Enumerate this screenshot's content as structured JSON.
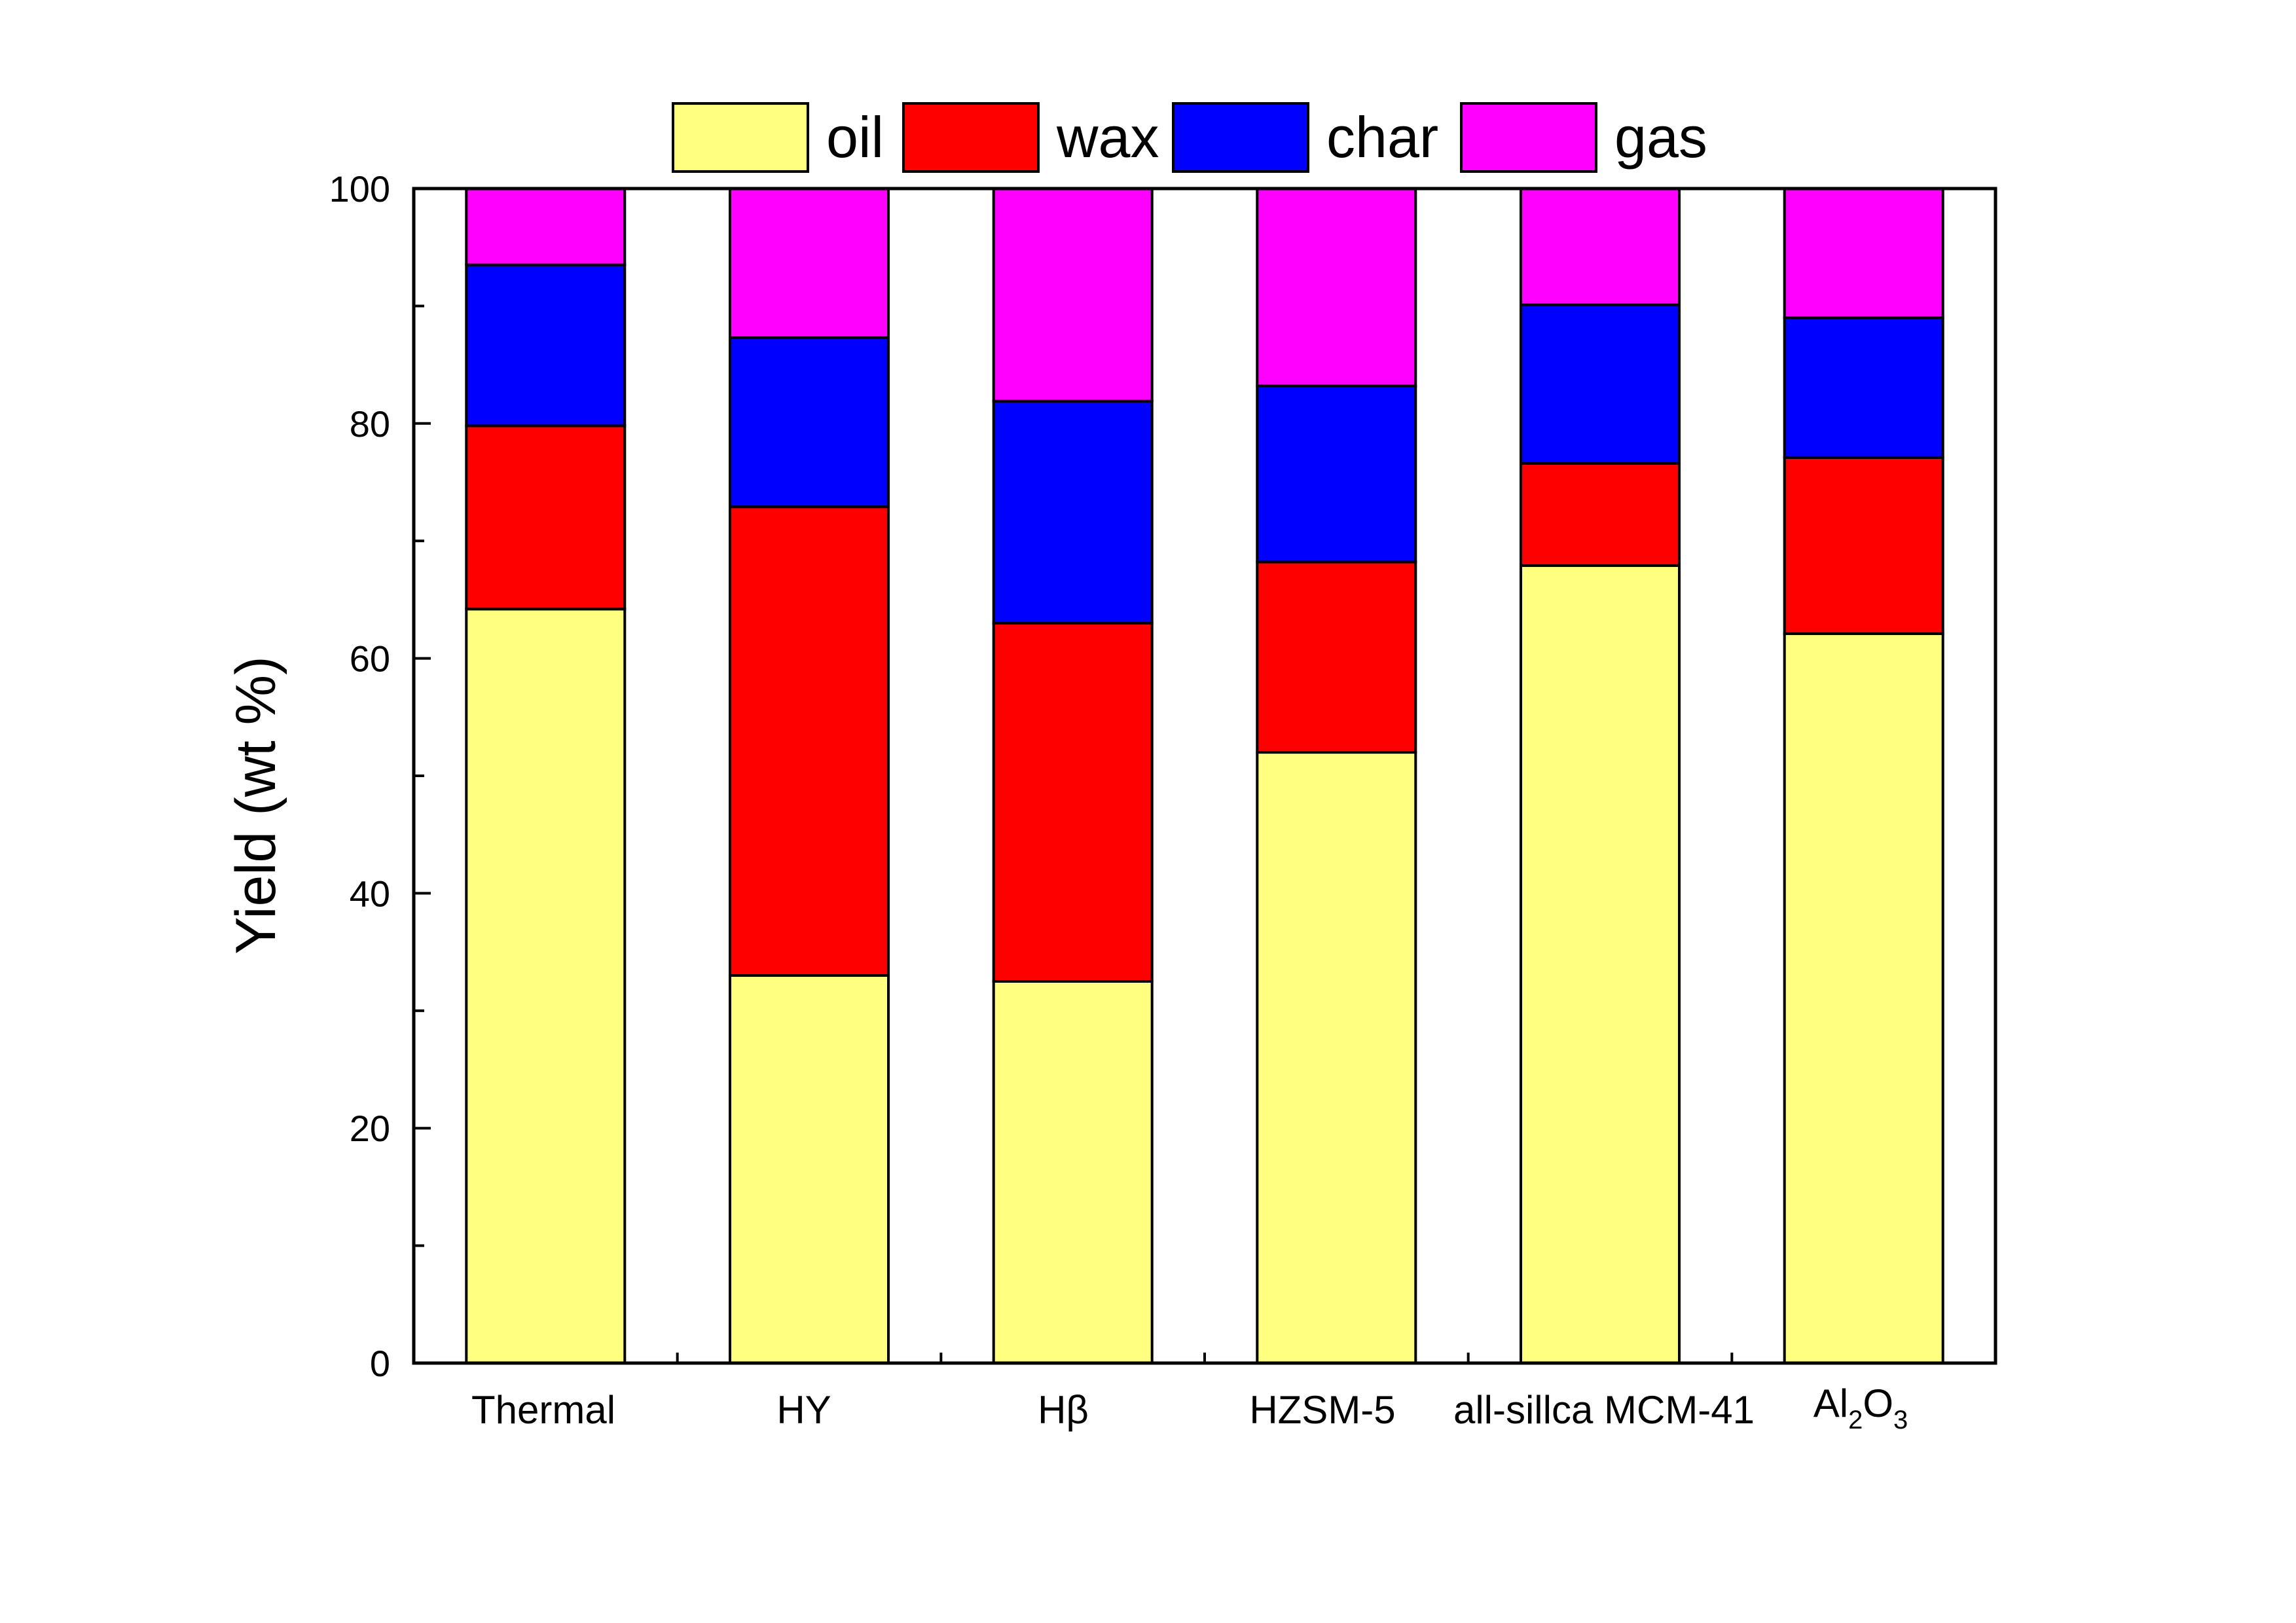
{
  "chart_data": {
    "type": "bar",
    "stacked": true,
    "title": "",
    "xlabel": "",
    "ylabel": "Yield (wt %)",
    "ylim": [
      0,
      100
    ],
    "yticks": [
      "0",
      "20",
      "40",
      "60",
      "80",
      "100"
    ],
    "legend_position": "top-center",
    "categories": [
      "Thermal",
      "HY",
      "Hβ",
      "HZSM-5",
      "all-sillca MCM-41",
      "Al2O3"
    ],
    "al2o3_label": {
      "base": "Al",
      "sub1": "2",
      "mid": "O",
      "sub2": "3"
    },
    "series": [
      {
        "name": "oil",
        "color": "#FFFF80",
        "values": [
          64.2,
          33.0,
          32.5,
          52.0,
          67.9,
          62.1
        ]
      },
      {
        "name": "wax",
        "color": "#FF0000",
        "values": [
          15.6,
          39.9,
          30.5,
          16.2,
          8.7,
          15.0
        ]
      },
      {
        "name": "char",
        "color": "#0000FF",
        "values": [
          13.7,
          14.4,
          18.9,
          15.0,
          13.5,
          11.9
        ]
      },
      {
        "name": "gas",
        "color": "#FF00FF",
        "values": [
          6.5,
          12.7,
          18.1,
          16.8,
          9.9,
          11.0
        ]
      }
    ]
  }
}
